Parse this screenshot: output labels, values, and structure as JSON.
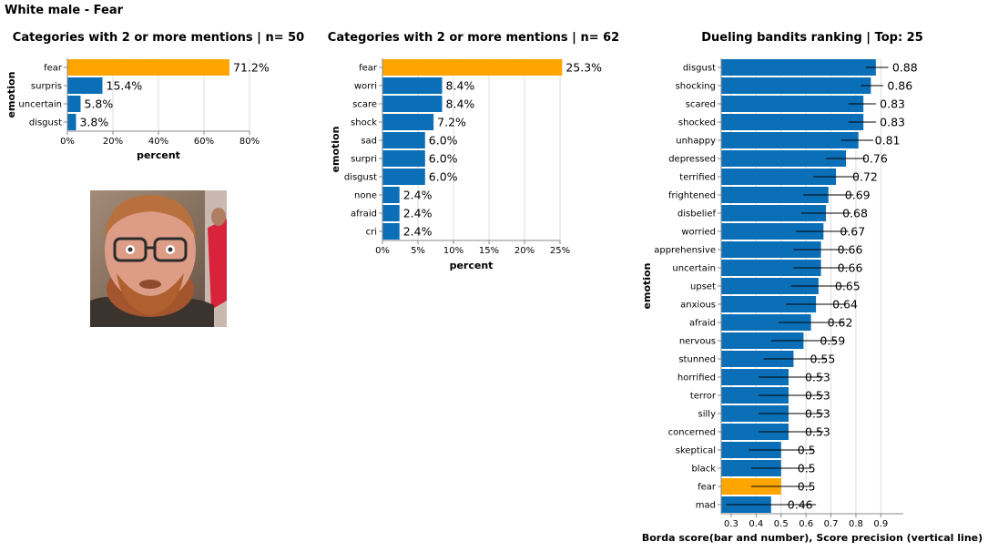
{
  "page_title": "White male - Fear",
  "colors": {
    "bar": "#0b6fb7",
    "highlight": "#ffa500",
    "errbar": "#000000"
  },
  "photo": {
    "icon": "face-photo"
  },
  "chart_data": [
    {
      "type": "bar",
      "orientation": "horizontal",
      "title": "Categories with 2 or more mentions | n= 50",
      "xlabel": "percent",
      "ylabel": "emotion",
      "xlim": [
        0,
        80
      ],
      "xticks": [
        "0%",
        "20%",
        "40%",
        "60%",
        "80%"
      ],
      "xtick_values": [
        0,
        20,
        40,
        60,
        80
      ],
      "grid": true,
      "highlight": "fear",
      "categories": [
        "fear",
        "surpris",
        "uncertain",
        "disgust"
      ],
      "values": [
        71.2,
        15.4,
        5.8,
        3.8
      ],
      "value_labels": [
        "71.2%",
        "15.4%",
        "5.8%",
        "3.8%"
      ]
    },
    {
      "type": "bar",
      "orientation": "horizontal",
      "title": "Categories with 2 or more mentions | n= 62",
      "xlabel": "percent",
      "ylabel": "emotion",
      "xlim": [
        0,
        25
      ],
      "xticks": [
        "0%",
        "5%",
        "10%",
        "15%",
        "20%",
        "25%"
      ],
      "xtick_values": [
        0,
        5,
        10,
        15,
        20,
        25
      ],
      "grid": true,
      "highlight": "fear",
      "categories": [
        "fear",
        "worri",
        "scare",
        "shock",
        "sad",
        "surpri",
        "disgust",
        "none",
        "afraid",
        "cri"
      ],
      "values": [
        25.3,
        8.4,
        8.4,
        7.2,
        6.0,
        6.0,
        6.0,
        2.4,
        2.4,
        2.4
      ],
      "value_labels": [
        "25.3%",
        "8.4%",
        "8.4%",
        "7.2%",
        "6.0%",
        "6.0%",
        "6.0%",
        "2.4%",
        "2.4%",
        "2.4%"
      ]
    },
    {
      "type": "bar",
      "orientation": "horizontal",
      "title": "Dueling bandits ranking | Top: 25",
      "xlabel": "Borda score(bar and number), Score precision (vertical line)",
      "ylabel": "emotion",
      "xlim": [
        0.26,
        0.99
      ],
      "xticks": [
        "0.3",
        "0.4",
        "0.5",
        "0.6",
        "0.7",
        "0.8",
        "0.9"
      ],
      "xtick_values": [
        0.3,
        0.4,
        0.5,
        0.6,
        0.7,
        0.8,
        0.9
      ],
      "grid": true,
      "highlight": "fear",
      "categories": [
        "disgust",
        "shocking",
        "scared",
        "shocked",
        "unhappy",
        "depressed",
        "terrified",
        "frightened",
        "disbelief",
        "worried",
        "apprehensive",
        "uncertain",
        "upset",
        "anxious",
        "afraid",
        "nervous",
        "stunned",
        "horrified",
        "terror",
        "silly",
        "concerned",
        "skeptical",
        "black",
        "fear",
        "mad"
      ],
      "values": [
        0.88,
        0.86,
        0.83,
        0.83,
        0.81,
        0.76,
        0.72,
        0.69,
        0.68,
        0.67,
        0.66,
        0.66,
        0.65,
        0.64,
        0.62,
        0.59,
        0.55,
        0.53,
        0.53,
        0.53,
        0.53,
        0.5,
        0.5,
        0.5,
        0.46
      ],
      "value_labels": [
        "0.88",
        "0.86",
        "0.83",
        "0.83",
        "0.81",
        "0.76",
        "0.72",
        "0.69",
        "0.68",
        "0.67",
        "0.66",
        "0.66",
        "0.65",
        "0.64",
        "0.62",
        "0.59",
        "0.55",
        "0.53",
        "0.53",
        "0.53",
        "0.53",
        "0.5",
        "0.5",
        "0.5",
        "0.46"
      ],
      "err_low": [
        0.84,
        0.82,
        0.77,
        0.77,
        0.74,
        0.68,
        0.63,
        0.59,
        0.58,
        0.56,
        0.55,
        0.55,
        0.54,
        0.52,
        0.49,
        0.46,
        0.43,
        0.41,
        0.41,
        0.41,
        0.41,
        0.37,
        0.38,
        0.38,
        0.28
      ],
      "err_high": [
        0.93,
        0.91,
        0.88,
        0.88,
        0.87,
        0.84,
        0.81,
        0.79,
        0.78,
        0.77,
        0.77,
        0.77,
        0.76,
        0.76,
        0.75,
        0.72,
        0.68,
        0.67,
        0.67,
        0.67,
        0.67,
        0.63,
        0.62,
        0.62,
        0.64
      ]
    }
  ]
}
